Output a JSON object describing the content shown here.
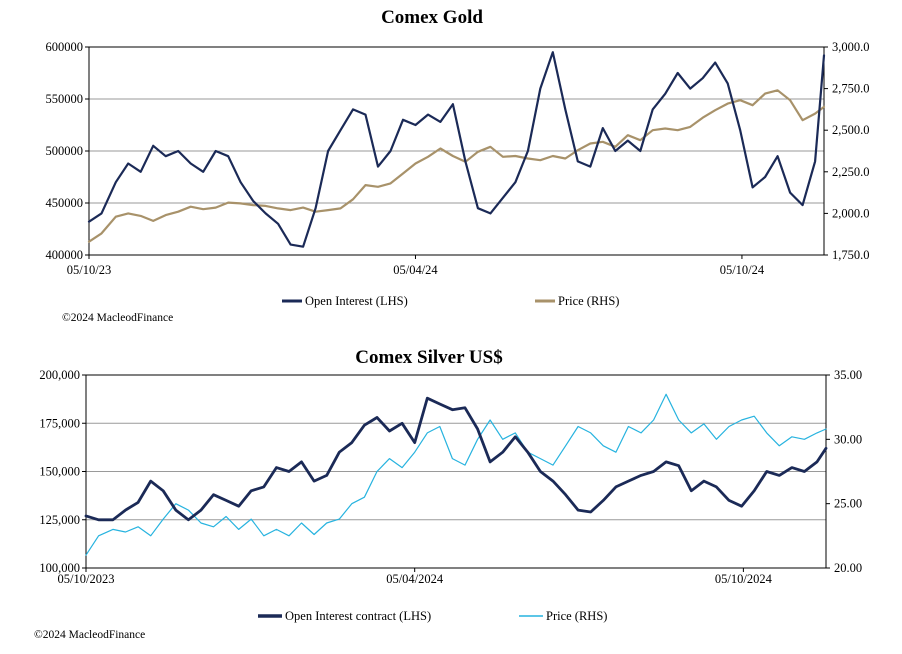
{
  "copyright": "©2024 MacleodFinance",
  "colors": {
    "open_interest": "#1b2a57",
    "gold_price": "#a8926a",
    "silver_price": "#27b3df",
    "grid": "#9a9a9a",
    "axis": "#000000"
  },
  "chart_data": [
    {
      "type": "line",
      "title": "Comex Gold",
      "x_tick_labels": [
        "05/10/23",
        "05/04/24",
        "05/10/24"
      ],
      "x_range": [
        "2023-10-05",
        "2024-11-20"
      ],
      "y_left": {
        "ticks": [
          "400000",
          "450000",
          "500000",
          "550000",
          "600000"
        ],
        "range": [
          400000,
          600000
        ]
      },
      "y_right": {
        "ticks": [
          "1,750.0",
          "2,000.0",
          "2,250.0",
          "2,500.0",
          "2,750.0",
          "3,000.0"
        ],
        "range": [
          1750,
          3000
        ]
      },
      "grid": "horizontal",
      "legend_position": "bottom",
      "series": [
        {
          "name": "Open Interest (LHS)",
          "axis": "left",
          "color": "#1b2a57",
          "x": [
            "2023-10-05",
            "2023-10-12",
            "2023-10-20",
            "2023-10-27",
            "2023-11-03",
            "2023-11-10",
            "2023-11-17",
            "2023-11-24",
            "2023-12-01",
            "2023-12-08",
            "2023-12-15",
            "2023-12-22",
            "2023-12-29",
            "2024-01-05",
            "2024-01-12",
            "2024-01-19",
            "2024-01-26",
            "2024-02-02",
            "2024-02-09",
            "2024-02-16",
            "2024-02-23",
            "2024-03-01",
            "2024-03-08",
            "2024-03-15",
            "2024-03-22",
            "2024-03-29",
            "2024-04-05",
            "2024-04-12",
            "2024-04-19",
            "2024-04-26",
            "2024-05-03",
            "2024-05-10",
            "2024-05-17",
            "2024-05-24",
            "2024-05-31",
            "2024-06-07",
            "2024-06-14",
            "2024-06-21",
            "2024-06-28",
            "2024-07-05",
            "2024-07-12",
            "2024-07-19",
            "2024-07-26",
            "2024-08-02",
            "2024-08-09",
            "2024-08-16",
            "2024-08-23",
            "2024-08-30",
            "2024-09-06",
            "2024-09-13",
            "2024-09-20",
            "2024-09-27",
            "2024-10-04",
            "2024-10-11",
            "2024-10-18",
            "2024-10-25",
            "2024-11-01",
            "2024-11-08",
            "2024-11-15",
            "2024-11-20"
          ],
          "values": [
            432000,
            440000,
            470000,
            488000,
            480000,
            505000,
            495000,
            500000,
            488000,
            480000,
            500000,
            495000,
            470000,
            452000,
            440000,
            430000,
            410000,
            408000,
            445000,
            500000,
            520000,
            540000,
            535000,
            485000,
            500000,
            530000,
            525000,
            535000,
            528000,
            545000,
            490000,
            445000,
            440000,
            455000,
            470000,
            500000,
            560000,
            595000,
            540000,
            490000,
            485000,
            522000,
            500000,
            510000,
            500000,
            540000,
            555000,
            575000,
            560000,
            570000,
            585000,
            565000,
            520000,
            465000,
            475000,
            495000,
            460000,
            448000,
            490000,
            592000
          ]
        },
        {
          "name": "Price (RHS)",
          "axis": "right",
          "color": "#a8926a",
          "x": [
            "2023-10-05",
            "2023-10-12",
            "2023-10-20",
            "2023-10-27",
            "2023-11-03",
            "2023-11-10",
            "2023-11-17",
            "2023-11-24",
            "2023-12-01",
            "2023-12-08",
            "2023-12-15",
            "2023-12-22",
            "2023-12-29",
            "2024-01-05",
            "2024-01-12",
            "2024-01-19",
            "2024-01-26",
            "2024-02-02",
            "2024-02-09",
            "2024-02-16",
            "2024-02-23",
            "2024-03-01",
            "2024-03-08",
            "2024-03-15",
            "2024-03-22",
            "2024-03-29",
            "2024-04-05",
            "2024-04-12",
            "2024-04-19",
            "2024-04-26",
            "2024-05-03",
            "2024-05-10",
            "2024-05-17",
            "2024-05-24",
            "2024-05-31",
            "2024-06-07",
            "2024-06-14",
            "2024-06-21",
            "2024-06-28",
            "2024-07-05",
            "2024-07-12",
            "2024-07-19",
            "2024-07-26",
            "2024-08-02",
            "2024-08-09",
            "2024-08-16",
            "2024-08-23",
            "2024-08-30",
            "2024-09-06",
            "2024-09-13",
            "2024-09-20",
            "2024-09-27",
            "2024-10-04",
            "2024-10-11",
            "2024-10-18",
            "2024-10-25",
            "2024-11-01",
            "2024-11-08",
            "2024-11-15",
            "2024-11-20"
          ],
          "values": [
            1830,
            1880,
            1980,
            2000,
            1985,
            1955,
            1990,
            2010,
            2040,
            2025,
            2035,
            2065,
            2060,
            2050,
            2045,
            2030,
            2020,
            2035,
            2010,
            2020,
            2030,
            2085,
            2170,
            2160,
            2180,
            2240,
            2300,
            2340,
            2390,
            2345,
            2310,
            2370,
            2400,
            2340,
            2345,
            2330,
            2320,
            2345,
            2330,
            2380,
            2420,
            2430,
            2400,
            2470,
            2440,
            2500,
            2510,
            2500,
            2520,
            2575,
            2620,
            2660,
            2680,
            2650,
            2720,
            2740,
            2680,
            2560,
            2600,
            2640
          ]
        }
      ]
    },
    {
      "type": "line",
      "title": "Comex Silver US$",
      "x_tick_labels": [
        "05/10/2023",
        "05/04/2024",
        "05/10/2024"
      ],
      "x_range": [
        "2023-10-05",
        "2024-11-20"
      ],
      "y_left": {
        "ticks": [
          "100,000",
          "125,000",
          "150,000",
          "175,000",
          "200,000"
        ],
        "range": [
          100000,
          200000
        ]
      },
      "y_right": {
        "ticks": [
          "20.00",
          "25.00",
          "30.00",
          "35.00"
        ],
        "range": [
          20,
          35
        ]
      },
      "grid": "horizontal",
      "legend_position": "bottom",
      "series": [
        {
          "name": "Open Interest contract (LHS)",
          "axis": "left",
          "color": "#1b2a57",
          "x": [
            "2023-10-05",
            "2023-10-12",
            "2023-10-20",
            "2023-10-27",
            "2023-11-03",
            "2023-11-10",
            "2023-11-17",
            "2023-11-24",
            "2023-12-01",
            "2023-12-08",
            "2023-12-15",
            "2023-12-22",
            "2023-12-29",
            "2024-01-05",
            "2024-01-12",
            "2024-01-19",
            "2024-01-26",
            "2024-02-02",
            "2024-02-09",
            "2024-02-16",
            "2024-02-23",
            "2024-03-01",
            "2024-03-08",
            "2024-03-15",
            "2024-03-22",
            "2024-03-29",
            "2024-04-05",
            "2024-04-12",
            "2024-04-19",
            "2024-04-26",
            "2024-05-03",
            "2024-05-10",
            "2024-05-17",
            "2024-05-24",
            "2024-05-31",
            "2024-06-07",
            "2024-06-14",
            "2024-06-21",
            "2024-06-28",
            "2024-07-05",
            "2024-07-12",
            "2024-07-19",
            "2024-07-26",
            "2024-08-02",
            "2024-08-09",
            "2024-08-16",
            "2024-08-23",
            "2024-08-30",
            "2024-09-06",
            "2024-09-13",
            "2024-09-20",
            "2024-09-27",
            "2024-10-04",
            "2024-10-11",
            "2024-10-18",
            "2024-10-25",
            "2024-11-01",
            "2024-11-08",
            "2024-11-15",
            "2024-11-20"
          ],
          "values": [
            127000,
            125000,
            125000,
            130000,
            134000,
            145000,
            140000,
            130000,
            125000,
            130000,
            138000,
            135000,
            132000,
            140000,
            142000,
            152000,
            150000,
            155000,
            145000,
            148000,
            160000,
            165000,
            174000,
            178000,
            171000,
            175000,
            165000,
            188000,
            185000,
            182000,
            183000,
            172000,
            155000,
            160000,
            168000,
            160000,
            150000,
            145000,
            138000,
            130000,
            129000,
            135000,
            142000,
            145000,
            148000,
            150000,
            155000,
            153000,
            140000,
            145000,
            142000,
            135000,
            132000,
            140000,
            150000,
            148000,
            152000,
            150000,
            155000,
            162000
          ]
        },
        {
          "name": "Price (RHS)",
          "axis": "right",
          "color": "#27b3df",
          "x": [
            "2023-10-05",
            "2023-10-12",
            "2023-10-20",
            "2023-10-27",
            "2023-11-03",
            "2023-11-10",
            "2023-11-17",
            "2023-11-24",
            "2023-12-01",
            "2023-12-08",
            "2023-12-15",
            "2023-12-22",
            "2023-12-29",
            "2024-01-05",
            "2024-01-12",
            "2024-01-19",
            "2024-01-26",
            "2024-02-02",
            "2024-02-09",
            "2024-02-16",
            "2024-02-23",
            "2024-03-01",
            "2024-03-08",
            "2024-03-15",
            "2024-03-22",
            "2024-03-29",
            "2024-04-05",
            "2024-04-12",
            "2024-04-19",
            "2024-04-26",
            "2024-05-03",
            "2024-05-10",
            "2024-05-17",
            "2024-05-24",
            "2024-05-31",
            "2024-06-07",
            "2024-06-14",
            "2024-06-21",
            "2024-06-28",
            "2024-07-05",
            "2024-07-12",
            "2024-07-19",
            "2024-07-26",
            "2024-08-02",
            "2024-08-09",
            "2024-08-16",
            "2024-08-23",
            "2024-08-30",
            "2024-09-06",
            "2024-09-13",
            "2024-09-20",
            "2024-09-27",
            "2024-10-04",
            "2024-10-11",
            "2024-10-18",
            "2024-10-25",
            "2024-11-01",
            "2024-11-08",
            "2024-11-15",
            "2024-11-20"
          ],
          "values": [
            21.0,
            22.5,
            23.0,
            22.8,
            23.2,
            22.5,
            23.8,
            25.0,
            24.5,
            23.5,
            23.2,
            24.0,
            23.0,
            23.8,
            22.5,
            23.0,
            22.5,
            23.5,
            22.6,
            23.5,
            23.8,
            25.0,
            25.5,
            27.5,
            28.5,
            27.8,
            29.0,
            30.5,
            31.0,
            28.5,
            28.0,
            30.0,
            31.5,
            30.0,
            30.5,
            29.0,
            28.5,
            28.0,
            29.5,
            31.0,
            30.5,
            29.5,
            29.0,
            31.0,
            30.5,
            31.5,
            33.5,
            31.5,
            30.5,
            31.2,
            30.0,
            31.0,
            31.5,
            31.8,
            30.5,
            29.5,
            30.2,
            30.0,
            30.5,
            30.8
          ]
        }
      ]
    }
  ]
}
